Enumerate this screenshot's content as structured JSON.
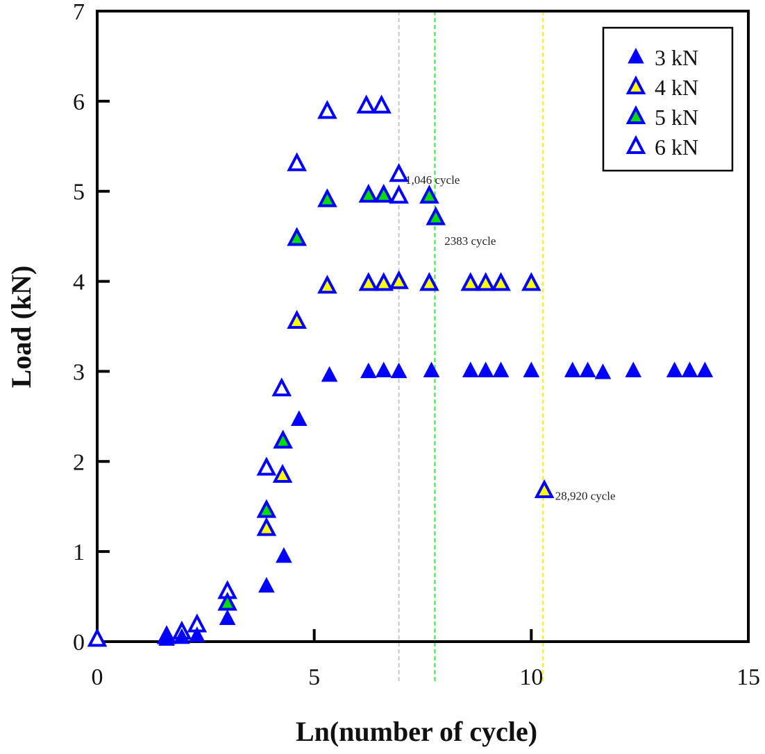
{
  "chart_data": {
    "type": "scatter",
    "title": "",
    "xlabel": "Ln(number of cycle)",
    "ylabel": "Load (kN)",
    "xlim": [
      0,
      15
    ],
    "ylim": [
      0,
      7
    ],
    "xticks": [
      0,
      5,
      10,
      15
    ],
    "yticks": [
      0,
      1,
      2,
      3,
      4,
      5,
      6,
      7
    ],
    "xtick_labels": [
      "0",
      "5",
      "10",
      "15"
    ],
    "ytick_labels": [
      "0",
      "1",
      "2",
      "3",
      "4",
      "5",
      "6",
      "7"
    ],
    "grid": false,
    "legend_position": "top-right",
    "series": [
      {
        "name": "3 kN",
        "marker": "triangle-filled",
        "edge_color": "#0000ff",
        "fill_color": "#0000ff",
        "points": [
          [
            1.6,
            0.02
          ],
          [
            1.95,
            0.04
          ],
          [
            2.3,
            0.06
          ],
          [
            3.0,
            0.25
          ],
          [
            3.9,
            0.61
          ],
          [
            4.3,
            0.94
          ],
          [
            4.65,
            2.46
          ],
          [
            5.35,
            2.95
          ],
          [
            6.25,
            2.99
          ],
          [
            6.6,
            3.0
          ],
          [
            6.95,
            2.99
          ],
          [
            7.7,
            3.0
          ],
          [
            8.6,
            3.0
          ],
          [
            8.95,
            3.0
          ],
          [
            9.3,
            3.0
          ],
          [
            10.0,
            3.0
          ],
          [
            10.95,
            3.0
          ],
          [
            11.3,
            3.0
          ],
          [
            11.65,
            2.98
          ],
          [
            12.35,
            3.0
          ],
          [
            13.3,
            3.0
          ],
          [
            13.65,
            3.0
          ],
          [
            14.0,
            3.0
          ]
        ]
      },
      {
        "name": "4 kN",
        "marker": "triangle",
        "edge_color": "#0000ff",
        "fill_color": "#ffff00",
        "points": [
          [
            3.9,
            1.25
          ],
          [
            4.27,
            1.84
          ],
          [
            4.6,
            3.55
          ],
          [
            5.3,
            3.94
          ],
          [
            6.25,
            3.97
          ],
          [
            6.6,
            3.97
          ],
          [
            6.95,
            3.99
          ],
          [
            7.65,
            3.97
          ],
          [
            8.6,
            3.97
          ],
          [
            8.95,
            3.97
          ],
          [
            9.3,
            3.97
          ],
          [
            10.0,
            3.97
          ],
          [
            10.3,
            1.67
          ]
        ]
      },
      {
        "name": "5 kN",
        "marker": "triangle",
        "edge_color": "#0000ff",
        "fill_color": "#00dd00",
        "points": [
          [
            3.0,
            0.42
          ],
          [
            3.9,
            1.45
          ],
          [
            4.28,
            2.22
          ],
          [
            4.6,
            4.47
          ],
          [
            5.3,
            4.9
          ],
          [
            6.25,
            4.95
          ],
          [
            6.6,
            4.95
          ],
          [
            7.65,
            4.94
          ],
          [
            7.8,
            4.7
          ]
        ]
      },
      {
        "name": "6 kN",
        "marker": "triangle",
        "edge_color": "#0000ff",
        "fill_color": "#ffffff",
        "points": [
          [
            0.0,
            0.02
          ],
          [
            1.6,
            0.05
          ],
          [
            1.95,
            0.1
          ],
          [
            2.3,
            0.18
          ],
          [
            3.0,
            0.55
          ],
          [
            3.9,
            1.92
          ],
          [
            4.25,
            2.8
          ],
          [
            4.6,
            5.3
          ],
          [
            5.3,
            5.88
          ],
          [
            6.2,
            5.94
          ],
          [
            6.55,
            5.94
          ],
          [
            6.95,
            4.94
          ],
          [
            6.95,
            5.18
          ]
        ]
      }
    ],
    "reference_lines": [
      {
        "x": 6.95,
        "color": "#c8c8c8",
        "style": "dashed"
      },
      {
        "x": 7.78,
        "color": "#33ee33",
        "style": "dashed"
      },
      {
        "x": 10.27,
        "color": "#ffee00",
        "style": "dashed"
      }
    ],
    "annotations": [
      {
        "text": "1,046 cycle",
        "x": 7.1,
        "y": 5.13
      },
      {
        "text": "2383 cycle",
        "x": 8.0,
        "y": 4.45
      },
      {
        "text": "28,920 cycle",
        "x": 10.55,
        "y": 1.62
      }
    ]
  }
}
